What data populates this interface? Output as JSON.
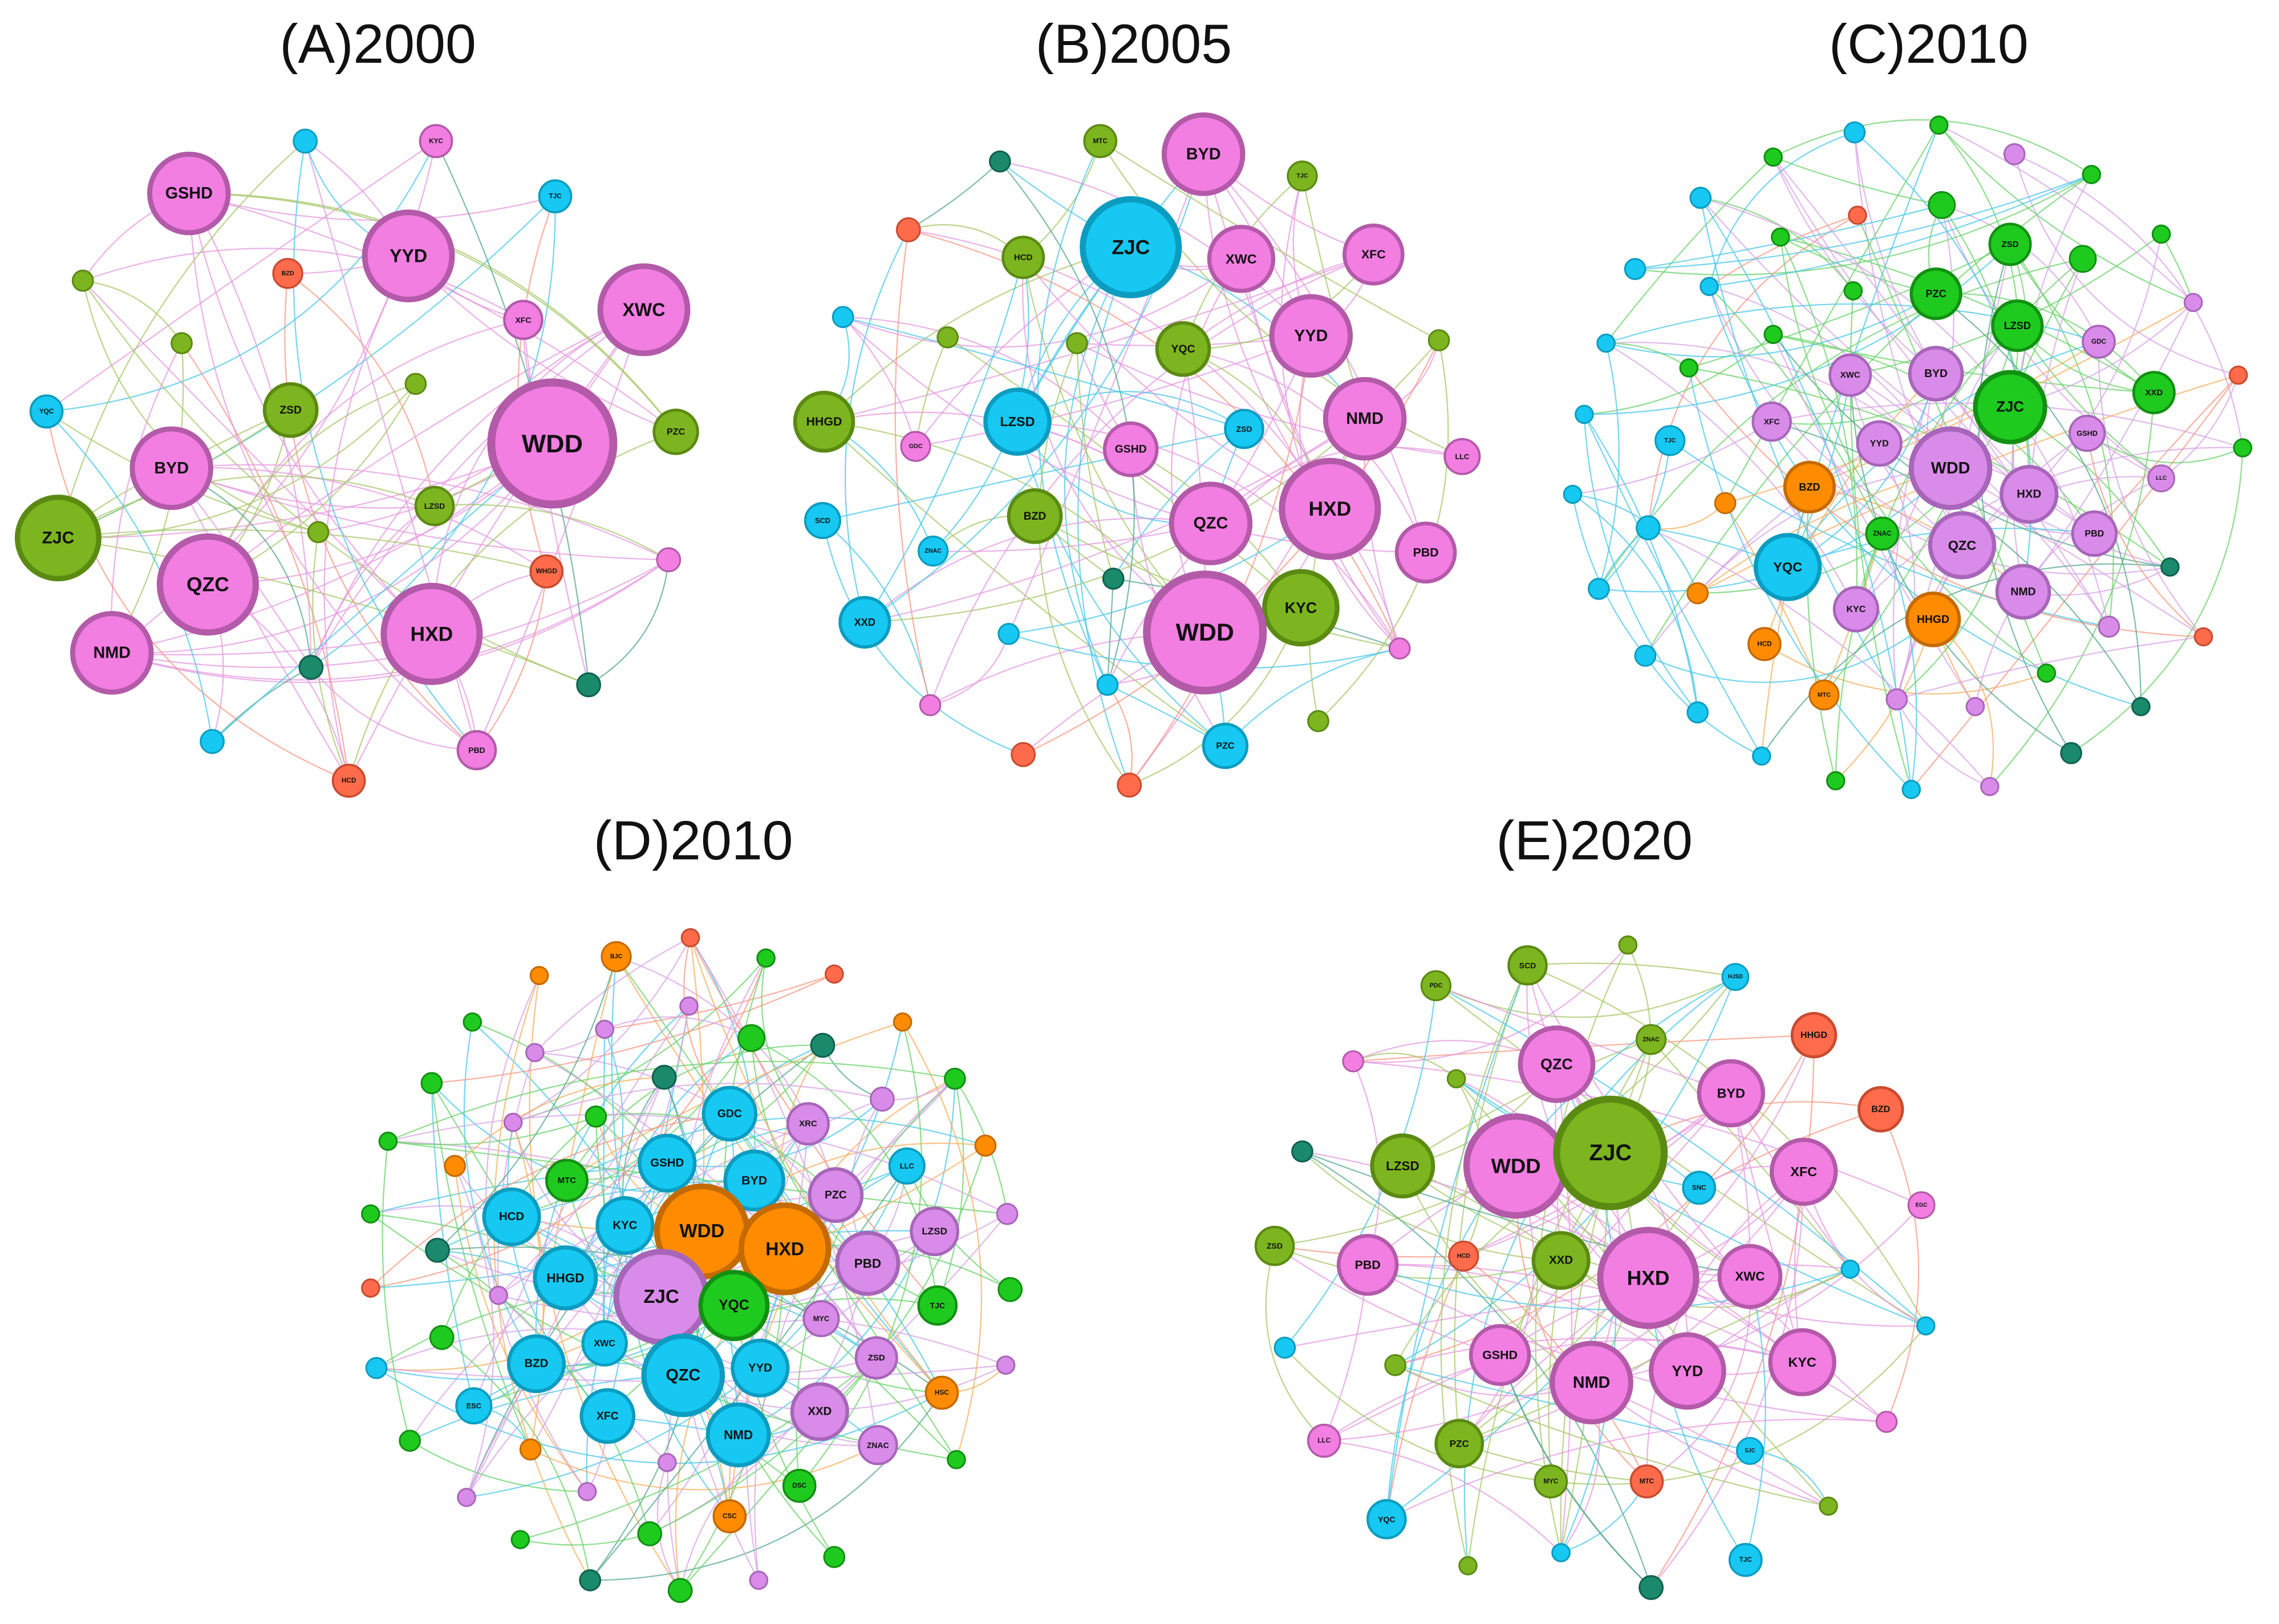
{
  "panels": [
    {
      "title": "(A)2000",
      "nodes": [
        "GSHD",
        "YYD",
        "XWC",
        "WDD",
        "XFC",
        "KYC",
        "TJC",
        "BZD",
        "ZSD",
        "BYD",
        "ZJC",
        "QZC",
        "NMD",
        "HXD",
        "LZSD",
        "PZC",
        "YQC",
        "WHGD",
        "HCD",
        "PBD"
      ]
    },
    {
      "title": "(B)2005",
      "nodes": [
        "BYD",
        "MTC",
        "TJC",
        "ZJC",
        "HCD",
        "XWC",
        "XFC",
        "YYD",
        "YQC",
        "HHGD",
        "LZSD",
        "NMD",
        "ZSD",
        "GSHD",
        "LLC",
        "GDC",
        "SCD",
        "ZNAC",
        "BZD",
        "QZC",
        "HXD",
        "PBD",
        "XXD",
        "KYC",
        "WDD",
        "PZC"
      ]
    },
    {
      "title": "(C)2010",
      "nodes": [
        "ZSD",
        "PZC",
        "LZSD",
        "ZJC",
        "XXD",
        "XWC",
        "BYD",
        "GDC",
        "XFC",
        "YYD",
        "WDD",
        "GSHD",
        "HXD",
        "LLC",
        "BZD",
        "ZNAC",
        "QZC",
        "PBD",
        "YQC",
        "NMD",
        "KYC",
        "HHGD",
        "HCD",
        "MTC",
        "TJC"
      ]
    },
    {
      "title": "(D)2010",
      "nodes": [
        "BJC",
        "GDC",
        "XRC",
        "GSHD",
        "BYD",
        "MTC",
        "PZC",
        "LLC",
        "HCD",
        "KYC",
        "WDD",
        "HXD",
        "LZSD",
        "PBD",
        "HHGD",
        "ZJC",
        "YQC",
        "TJC",
        "MYC",
        "XWC",
        "BZD",
        "QZC",
        "YYD",
        "ZSD",
        "XXD",
        "XFC",
        "NMD",
        "ZNAC",
        "ESC",
        "HSC",
        "CSC",
        "DSC"
      ]
    },
    {
      "title": "(E)2020",
      "nodes": [
        "SCD",
        "PDC",
        "HJSD",
        "HHGD",
        "QZC",
        "ZNAC",
        "BYD",
        "BZD",
        "LZSD",
        "WDD",
        "ZJC",
        "SNC",
        "XFC",
        "EGC",
        "ZSD",
        "HCD",
        "XXD",
        "PBD",
        "HXD",
        "XWC",
        "GSHD",
        "NMD",
        "YYD",
        "KYC",
        "PZC",
        "LLC",
        "MYC",
        "MTC",
        "SJC",
        "YQC",
        "TJC"
      ]
    }
  ]
}
